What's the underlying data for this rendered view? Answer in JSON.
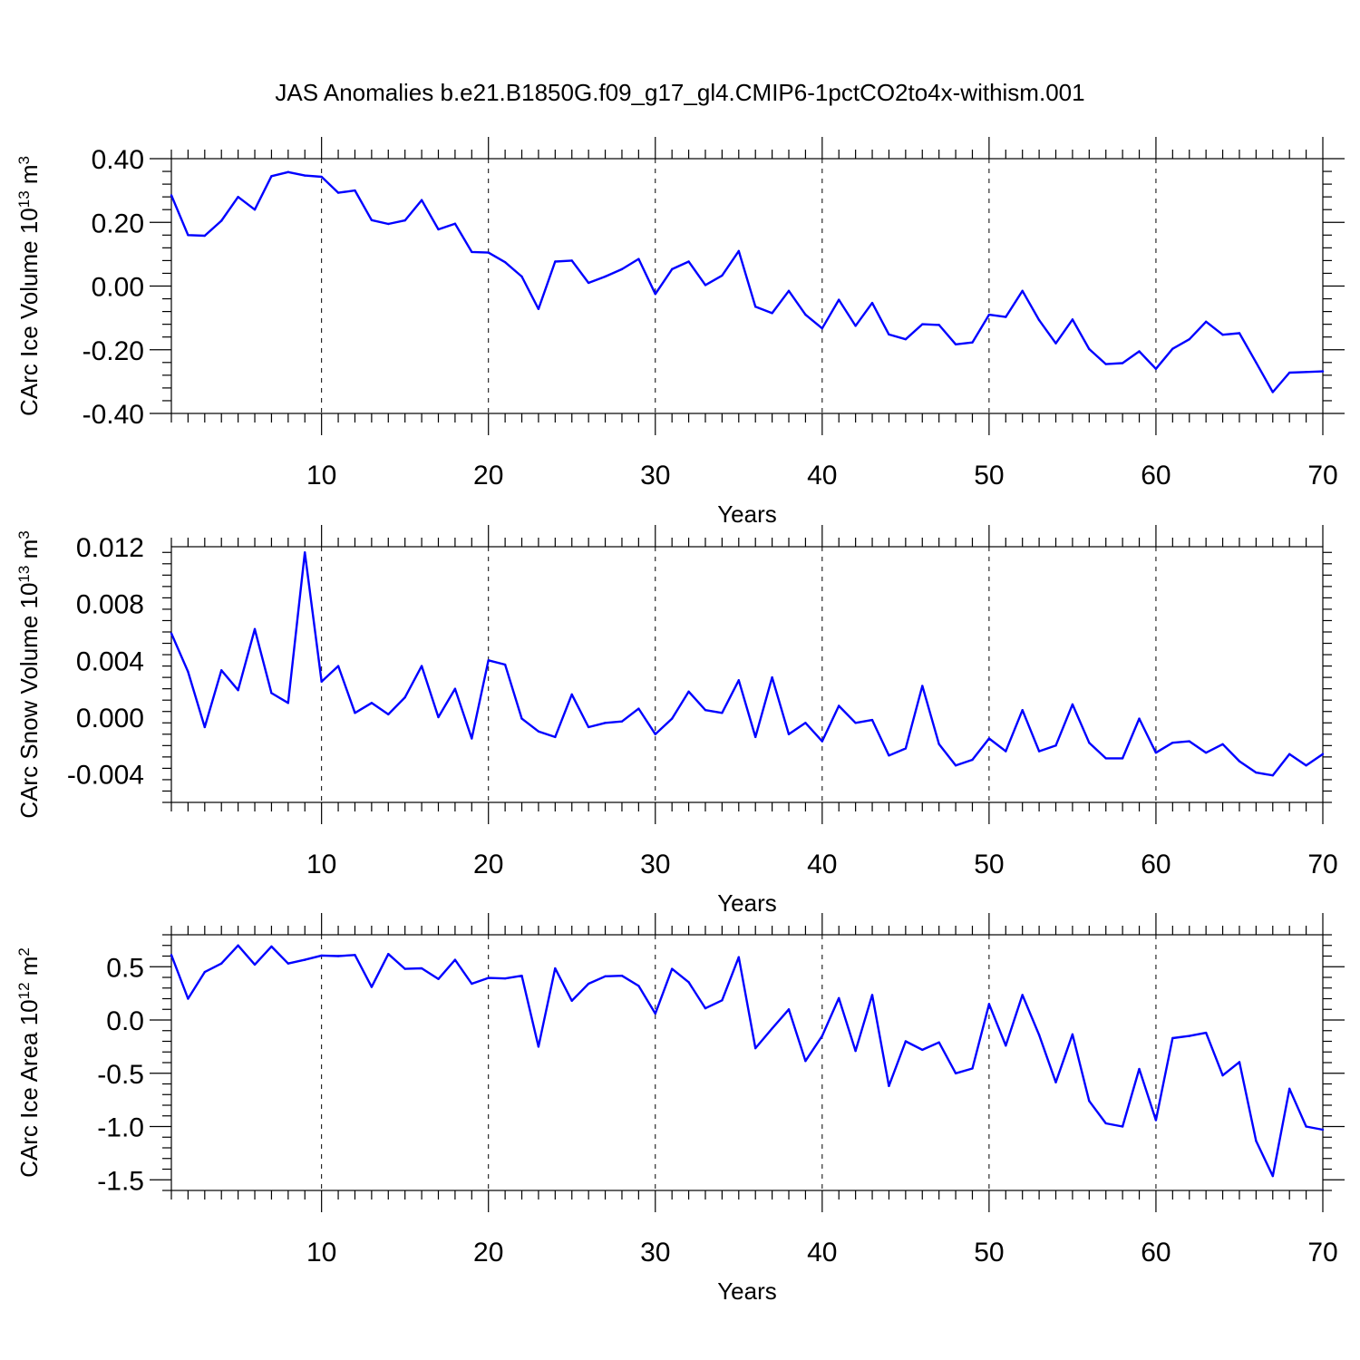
{
  "title": "JAS Anomalies b.e21.B1850G.f09_g17_gl4.CMIP6-1pctCO2to4x-withism.001",
  "colors": {
    "line": "#0000ff",
    "axes": "#000000",
    "background": "#ffffff"
  },
  "chart_data": [
    {
      "type": "line",
      "xlabel": "Years",
      "ylabel_main": "CArc Ice Volume 10",
      "ylabel_exp": "13",
      "ylabel_unit": " m",
      "ylabel_unit_exp": "3",
      "xlim": [
        1,
        70
      ],
      "ylim": [
        -0.4,
        0.4
      ],
      "yticks": [
        -0.4,
        -0.2,
        0.0,
        0.2,
        0.4
      ],
      "ytick_labels": [
        "-0.40",
        "-0.20",
        "0.00",
        "0.20",
        "0.40"
      ],
      "xticks": [
        10,
        20,
        30,
        40,
        50,
        60,
        70
      ],
      "xtick_labels": [
        "10",
        "20",
        "30",
        "40",
        "50",
        "60",
        "70"
      ],
      "grid": "vertical dashed at major x ticks",
      "x_start": 1,
      "values": [
        0.285,
        0.16,
        0.158,
        0.205,
        0.28,
        0.24,
        0.345,
        0.358,
        0.347,
        0.343,
        0.293,
        0.3,
        0.207,
        0.195,
        0.206,
        0.27,
        0.178,
        0.196,
        0.107,
        0.105,
        0.075,
        0.03,
        -0.072,
        0.077,
        0.08,
        0.01,
        0.03,
        0.053,
        0.085,
        -0.025,
        0.053,
        0.077,
        0.003,
        0.033,
        0.11,
        -0.065,
        -0.085,
        -0.015,
        -0.09,
        -0.133,
        -0.043,
        -0.125,
        -0.053,
        -0.152,
        -0.167,
        -0.12,
        -0.122,
        -0.183,
        -0.177,
        -0.09,
        -0.097,
        -0.015,
        -0.107,
        -0.18,
        -0.105,
        -0.198,
        -0.245,
        -0.242,
        -0.205,
        -0.26,
        -0.197,
        -0.167,
        -0.112,
        -0.153,
        -0.148,
        -0.24,
        -0.333,
        -0.272,
        -0.27,
        -0.268
      ]
    },
    {
      "type": "line",
      "xlabel": "Years",
      "ylabel_main": "CArc Snow Volume 10",
      "ylabel_exp": "13",
      "ylabel_unit": " m",
      "ylabel_unit_exp": "3",
      "xlim": [
        1,
        70
      ],
      "ylim": [
        -0.006,
        0.012
      ],
      "yticks": [
        -0.004,
        0.0,
        0.004,
        0.008,
        0.012
      ],
      "ytick_labels": [
        "-0.004",
        "0.000",
        "0.004",
        "0.008",
        "0.012"
      ],
      "xticks": [
        10,
        20,
        30,
        40,
        50,
        60,
        70
      ],
      "xtick_labels": [
        "10",
        "20",
        "30",
        "40",
        "50",
        "60",
        "70"
      ],
      "grid": "vertical dashed at major x ticks",
      "x_start": 1,
      "values": [
        0.0059,
        0.0032,
        -0.0007,
        0.0033,
        0.0019,
        0.0062,
        0.0017,
        0.001,
        0.0116,
        0.0025,
        0.0036,
        0.0003,
        0.001,
        0.0002,
        0.0014,
        0.0036,
        0.0,
        0.002,
        -0.0015,
        0.004,
        0.0037,
        -0.0001,
        -0.001,
        -0.0014,
        0.0016,
        -0.0007,
        -0.0004,
        -0.0003,
        0.0006,
        -0.0012,
        -0.0001,
        0.0018,
        0.0005,
        0.0003,
        0.0026,
        -0.0014,
        0.0028,
        -0.0012,
        -0.0004,
        -0.0017,
        0.0008,
        -0.0004,
        -0.0002,
        -0.0027,
        -0.0022,
        0.0022,
        -0.0019,
        -0.0034,
        -0.003,
        -0.0015,
        -0.0024,
        0.0005,
        -0.0024,
        -0.002,
        0.0009,
        -0.0018,
        -0.0029,
        -0.0029,
        -0.0001,
        -0.0025,
        -0.0018,
        -0.0017,
        -0.0025,
        -0.0019,
        -0.0031,
        -0.0039,
        -0.0041,
        -0.0026,
        -0.0034,
        -0.0026
      ]
    },
    {
      "type": "line",
      "xlabel": "Years",
      "ylabel_main": "CArc Ice Area 10",
      "ylabel_exp": "12",
      "ylabel_unit": " m",
      "ylabel_unit_exp": "2",
      "xlim": [
        1,
        70
      ],
      "ylim": [
        -1.6,
        0.8
      ],
      "yticks": [
        -1.5,
        -1.0,
        -0.5,
        0.0,
        0.5
      ],
      "ytick_labels": [
        "-1.5",
        "-1.0",
        "-0.5",
        "0.0",
        "0.5"
      ],
      "xticks": [
        10,
        20,
        30,
        40,
        50,
        60,
        70
      ],
      "xtick_labels": [
        "10",
        "20",
        "30",
        "40",
        "50",
        "60",
        "70"
      ],
      "grid": "vertical dashed at major x ticks",
      "x_start": 1,
      "values": [
        0.61,
        0.2,
        0.45,
        0.53,
        0.7,
        0.52,
        0.69,
        0.53,
        0.565,
        0.605,
        0.6,
        0.61,
        0.31,
        0.62,
        0.48,
        0.485,
        0.385,
        0.565,
        0.34,
        0.395,
        0.39,
        0.415,
        -0.25,
        0.485,
        0.18,
        0.34,
        0.41,
        0.415,
        0.32,
        0.06,
        0.48,
        0.355,
        0.11,
        0.185,
        0.59,
        -0.265,
        -0.08,
        0.1,
        -0.385,
        -0.15,
        0.205,
        -0.29,
        0.235,
        -0.62,
        -0.2,
        -0.28,
        -0.21,
        -0.5,
        -0.455,
        0.15,
        -0.24,
        0.235,
        -0.14,
        -0.585,
        -0.135,
        -0.76,
        -0.97,
        -1.0,
        -0.46,
        -0.94,
        -0.17,
        -0.15,
        -0.12,
        -0.52,
        -0.395,
        -1.135,
        -1.465,
        -0.645,
        -1.0,
        -1.03
      ]
    }
  ]
}
